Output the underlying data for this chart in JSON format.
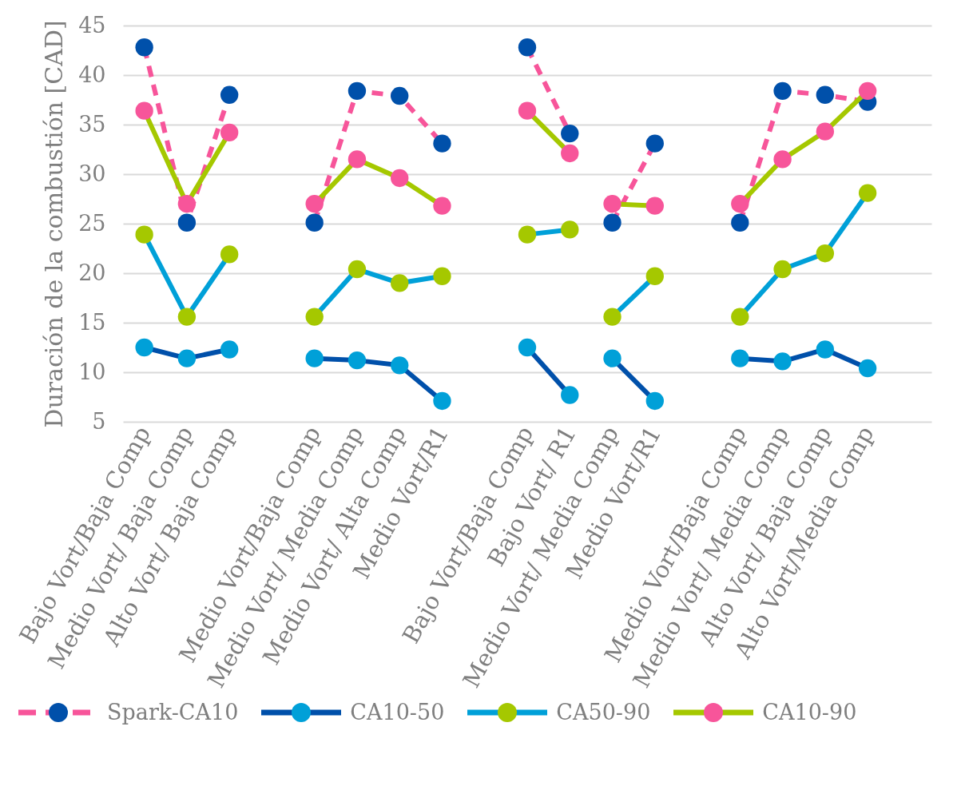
{
  "chart_data": {
    "type": "line",
    "ylabel": "Duración de la combustión [CAD]",
    "categories": [
      "Bajo Vort/Baja Comp",
      "Medio Vort/ Baja Comp",
      "Alto Vort/ Baja Comp",
      null,
      "Medio Vort/Baja Comp",
      "Medio Vort/ Media Comp",
      "Medio Vort/ Alta Comp",
      "Medio Vort/R1",
      null,
      "Bajo Vort/Baja Comp",
      "Bajo Vort/ R1",
      "Medio Vort/ Media Comp",
      "Medio Vort/R1",
      null,
      "Medio Vort/Baja Comp",
      "Medio Vort/ Media Comp",
      "Alto Vort/ Baja Comp",
      "Alto Vort/Media Comp",
      null
    ],
    "series": [
      {
        "name": "Spark-CA10",
        "color": "#f7559a",
        "line_style": "dashed",
        "values": [
          42.8,
          25.1,
          38.0,
          null,
          25.1,
          38.4,
          37.9,
          33.1,
          null,
          42.8,
          34.1,
          null,
          null,
          null,
          25.1,
          38.4,
          38.0,
          37.3,
          null
        ],
        "colors": [
          "#0050aa",
          "#0050aa",
          "#0050aa",
          null,
          "#0050aa",
          "#0050aa",
          "#0050aa",
          "#0050aa",
          null,
          "#0050aa",
          "#0050aa",
          "#0050aa",
          "#0050aa",
          null,
          "#0050aa",
          "#0050aa",
          "#0050aa",
          "#0050aa",
          null
        ]
      },
      {
        "color": "#f7559a",
        "line_style": "dashed",
        "values": [
          null,
          null,
          null,
          null,
          null,
          null,
          null,
          null,
          null,
          null,
          null,
          25.1,
          33.1,
          null,
          null,
          null,
          null,
          null,
          null
        ],
        "colors": [
          null,
          null,
          null,
          null,
          null,
          null,
          null,
          null,
          null,
          null,
          null,
          "#0050aa",
          "#0050aa",
          null,
          null,
          null,
          null,
          null,
          null
        ]
      },
      {
        "name": "CA10-50",
        "color": "#0050aa",
        "line_style": "solid",
        "values": [
          12.5,
          11.4,
          12.3,
          null,
          11.4,
          11.2,
          10.7,
          7.1,
          null,
          12.5,
          7.7,
          null,
          null,
          null,
          11.4,
          11.1,
          12.3,
          10.4,
          null
        ],
        "colors": [
          "#00a0d8",
          "#00a0d8",
          "#00a0d8",
          null,
          "#00a0d8",
          "#00a0d8",
          "#00a0d8",
          "#00a0d8",
          null,
          "#00a0d8",
          "#00a0d8",
          "#00a0d8",
          "#00a0d8",
          null,
          "#00a0d8",
          "#00a0d8",
          "#00a0d8",
          "#00a0d8",
          null
        ]
      },
      {
        "color": "#0050aa",
        "line_style": "solid",
        "values": [
          null,
          null,
          null,
          null,
          null,
          null,
          null,
          null,
          null,
          null,
          null,
          11.4,
          7.1,
          null,
          null,
          null,
          null,
          null,
          null
        ],
        "colors": [
          null,
          null,
          null,
          null,
          null,
          null,
          null,
          null,
          null,
          null,
          null,
          "#00a0d8",
          "#00a0d8",
          null,
          null,
          null,
          null,
          null,
          null
        ]
      },
      {
        "name": "CA50-90",
        "color": "#00a0d8",
        "line_style": "solid",
        "values": [
          23.9,
          15.6,
          21.9,
          null,
          15.6,
          20.4,
          19.0,
          19.7,
          null,
          23.9,
          24.4,
          null,
          null,
          null,
          15.6,
          20.4,
          22.0,
          28.1,
          null
        ],
        "colors": [
          "#a5c800",
          "#a5c800",
          "#a5c800",
          null,
          "#a5c800",
          "#a5c800",
          "#a5c800",
          "#a5c800",
          null,
          "#a5c800",
          "#a5c800",
          "#a5c800",
          "#a5c800",
          null,
          "#a5c800",
          "#a5c800",
          "#a5c800",
          "#a5c800",
          null
        ]
      },
      {
        "color": "#00a0d8",
        "line_style": "solid",
        "values": [
          null,
          null,
          null,
          null,
          null,
          null,
          null,
          null,
          null,
          null,
          null,
          15.6,
          19.7,
          null,
          null,
          null,
          null,
          null,
          null
        ],
        "colors": [
          null,
          null,
          null,
          null,
          null,
          null,
          null,
          null,
          null,
          null,
          null,
          "#a5c800",
          "#a5c800",
          null,
          null,
          null,
          null,
          null,
          null
        ]
      },
      {
        "name": "CA10-90",
        "color": "#a5c800",
        "line_style": "solid",
        "values": [
          36.4,
          27.0,
          34.2,
          null,
          27.0,
          31.5,
          29.6,
          26.8,
          null,
          36.4,
          32.1,
          null,
          null,
          null,
          27.0,
          31.5,
          34.3,
          38.4,
          null
        ],
        "colors": [
          "#f7559a",
          "#f7559a",
          "#f7559a",
          null,
          "#f7559a",
          "#f7559a",
          "#f7559a",
          "#f7559a",
          null,
          "#f7559a",
          "#f7559a",
          "#f7559a",
          "#f7559a",
          null,
          "#f7559a",
          "#f7559a",
          "#f7559a",
          "#f7559a",
          null
        ]
      },
      {
        "color": "#a5c800",
        "line_style": "solid",
        "values": [
          null,
          null,
          null,
          null,
          null,
          null,
          null,
          null,
          null,
          null,
          null,
          27.0,
          26.8,
          null,
          null,
          null,
          null,
          null,
          null
        ],
        "colors": [
          null,
          null,
          null,
          null,
          null,
          null,
          null,
          null,
          null,
          null,
          null,
          "#f7559a",
          "#f7559a",
          null,
          null,
          null,
          null,
          null,
          null
        ]
      }
    ],
    "ylim": [
      5,
      45
    ],
    "yticks": [
      5,
      10,
      15,
      20,
      25,
      30,
      35,
      40,
      45
    ],
    "grid": "y",
    "legend": "bottom",
    "marker": "circle"
  }
}
